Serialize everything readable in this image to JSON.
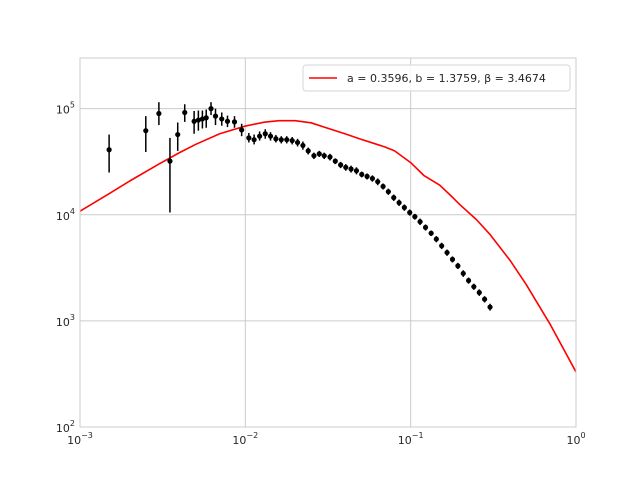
{
  "chart_data": {
    "type": "scatter",
    "title": "",
    "xlabel": "",
    "ylabel": "",
    "x_scale": "log",
    "y_scale": "log",
    "xlim": [
      0.001,
      1
    ],
    "ylim": [
      100,
      300000
    ],
    "grid": true,
    "legend_position": "top-right",
    "x_ticks": [
      {
        "base": "10",
        "exp": "−3",
        "value": 0.001
      },
      {
        "base": "10",
        "exp": "−2",
        "value": 0.01
      },
      {
        "base": "10",
        "exp": "−1",
        "value": 0.1
      },
      {
        "base": "10",
        "exp": "0",
        "value": 1
      }
    ],
    "y_ticks": [
      {
        "base": "10",
        "exp": "2",
        "value": 100
      },
      {
        "base": "10",
        "exp": "3",
        "value": 1000
      },
      {
        "base": "10",
        "exp": "4",
        "value": 10000
      },
      {
        "base": "10",
        "exp": "5",
        "value": 100000
      }
    ],
    "legend": {
      "label": "a = 0.3596, b = 1.3759, β = 3.4674",
      "color": "#ff0000"
    },
    "fit_curve": {
      "label": "a = 0.3596, b = 1.3759, β = 3.4674",
      "color": "#ff0000",
      "x": [
        0.001,
        0.0015,
        0.002,
        0.003,
        0.004,
        0.005,
        0.007,
        0.01,
        0.013,
        0.016,
        0.02,
        0.025,
        0.03,
        0.04,
        0.05,
        0.06,
        0.07,
        0.08,
        0.1,
        0.12,
        0.15,
        0.18,
        0.2,
        0.25,
        0.3,
        0.4,
        0.5,
        0.7,
        1.0
      ],
      "y": [
        10800,
        15800,
        20800,
        30000,
        38500,
        46000,
        58000,
        68500,
        74500,
        77000,
        77000,
        73500,
        67000,
        58000,
        51500,
        47000,
        43500,
        40000,
        31000,
        23500,
        19000,
        14500,
        12300,
        9000,
        6600,
        3700,
        2200,
        920,
        330
      ]
    },
    "series": [
      {
        "color": "#000000",
        "x": [
          0.0015,
          0.0025,
          0.003,
          0.0035,
          0.0039,
          0.0043,
          0.0049,
          0.0052,
          0.0055,
          0.0058,
          0.0062,
          0.0066,
          0.0072,
          0.0078,
          0.0086,
          0.0095,
          0.0105,
          0.0113,
          0.0122,
          0.0132,
          0.0142,
          0.0153,
          0.0165,
          0.0178,
          0.0192,
          0.0207,
          0.0223,
          0.024,
          0.026,
          0.028,
          0.03,
          0.0325,
          0.035,
          0.0377,
          0.0405,
          0.0436,
          0.047,
          0.0506,
          0.0545,
          0.0587,
          0.0632,
          0.0681,
          0.0733,
          0.079,
          0.0851,
          0.0916,
          0.0987,
          0.106,
          0.114,
          0.123,
          0.133,
          0.143,
          0.154,
          0.166,
          0.179,
          0.193,
          0.208,
          0.224,
          0.241,
          0.26,
          0.28,
          0.302
        ],
        "y": [
          41000,
          62000,
          90000,
          32000,
          57000,
          92000,
          76000,
          78000,
          80000,
          82000,
          100000,
          85000,
          80000,
          76000,
          75000,
          63000,
          53000,
          51000,
          55000,
          58000,
          55000,
          52000,
          51000,
          51000,
          50000,
          48000,
          45000,
          40000,
          36000,
          37500,
          36000,
          35000,
          32000,
          29500,
          28000,
          27000,
          26000,
          24000,
          23000,
          22000,
          20500,
          18500,
          16500,
          14500,
          13000,
          11700,
          10500,
          9600,
          8600,
          7600,
          6700,
          5900,
          5100,
          4400,
          3800,
          3300,
          2800,
          2400,
          2100,
          1850,
          1600,
          1350
        ],
        "yerr_low": [
          25000,
          39000,
          70000,
          10500,
          40000,
          75000,
          58000,
          62000,
          65000,
          66000,
          87000,
          70000,
          69000,
          67000,
          66000,
          55000,
          48000,
          46000,
          50000,
          52000,
          50000,
          48000,
          47000,
          47000,
          46000,
          44000,
          41000,
          37000,
          33500,
          35000,
          33500,
          32500,
          30000,
          27500,
          26000,
          25000,
          24000,
          22500,
          21500,
          20500,
          19000,
          17300,
          15400,
          13500,
          12100,
          10900,
          9800,
          9000,
          8000,
          7100,
          6300,
          5500,
          4750,
          4100,
          3550,
          3080,
          2600,
          2240,
          1960,
          1720,
          1490,
          1250
        ],
        "yerr_high": [
          57000,
          85000,
          115000,
          53000,
          74000,
          110000,
          95000,
          96000,
          96000,
          98000,
          115000,
          100000,
          92000,
          86000,
          85000,
          72000,
          59000,
          57000,
          61000,
          64000,
          60000,
          56500,
          55000,
          55000,
          54000,
          52000,
          49000,
          43000,
          38500,
          40000,
          38500,
          37500,
          34000,
          31500,
          30000,
          29000,
          28000,
          25500,
          24500,
          23500,
          22000,
          19700,
          17600,
          15500,
          13900,
          12500,
          11200,
          10200,
          9200,
          8100,
          7100,
          6300,
          5450,
          4700,
          4050,
          3520,
          3000,
          2560,
          2240,
          1980,
          1710,
          1450
        ]
      }
    ]
  }
}
